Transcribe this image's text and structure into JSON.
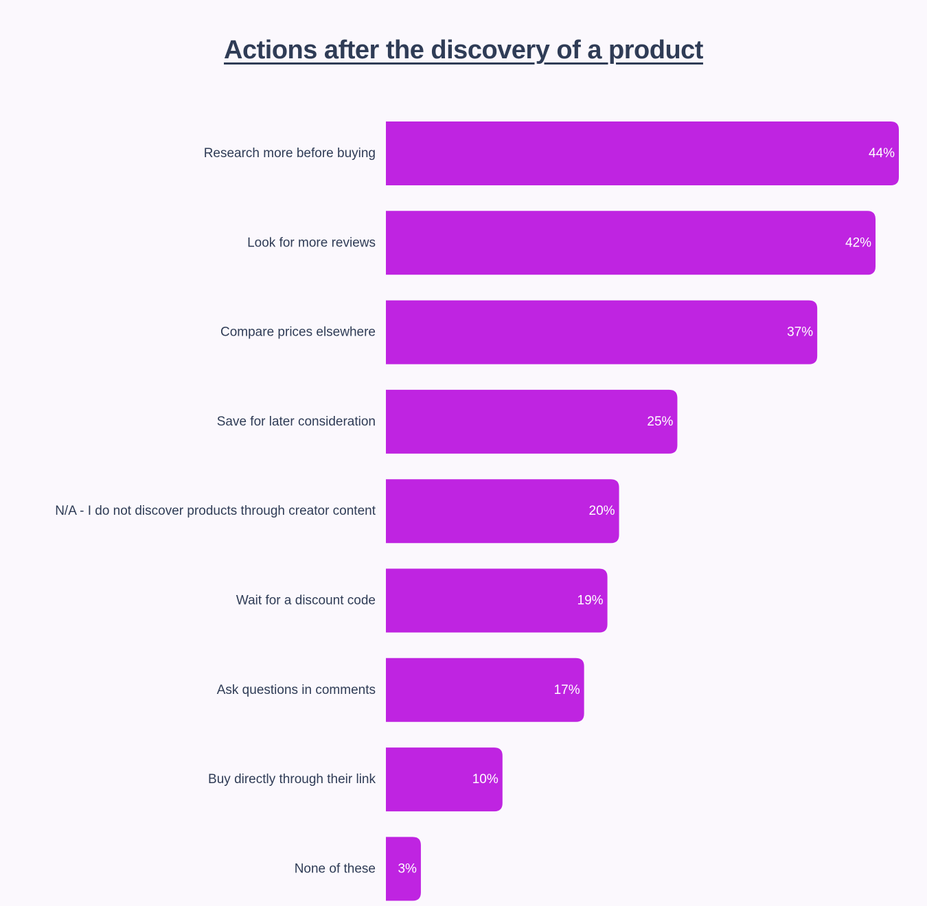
{
  "chart_data": {
    "type": "bar",
    "orientation": "horizontal",
    "title": "Actions after the discovery of a product",
    "categories": [
      "Research more before buying",
      "Look for more reviews",
      "Compare prices elsewhere",
      "Save for later consideration",
      "N/A - I do not discover products through creator content",
      "Wait for a discount code",
      "Ask questions in comments",
      "Buy directly through their link",
      "None of these"
    ],
    "values": [
      44,
      42,
      37,
      25,
      20,
      19,
      17,
      10,
      3
    ],
    "value_labels": [
      "44%",
      "42%",
      "37%",
      "25%",
      "20%",
      "19%",
      "17%",
      "10%",
      "3%"
    ],
    "unit": "%",
    "xlim": [
      0,
      44
    ],
    "grid": false,
    "legend": "none",
    "colors": {
      "bar": "#bf24e1",
      "text": "#2f3c56",
      "value_text": "#ffffff",
      "background": "#fbf8fd"
    }
  }
}
